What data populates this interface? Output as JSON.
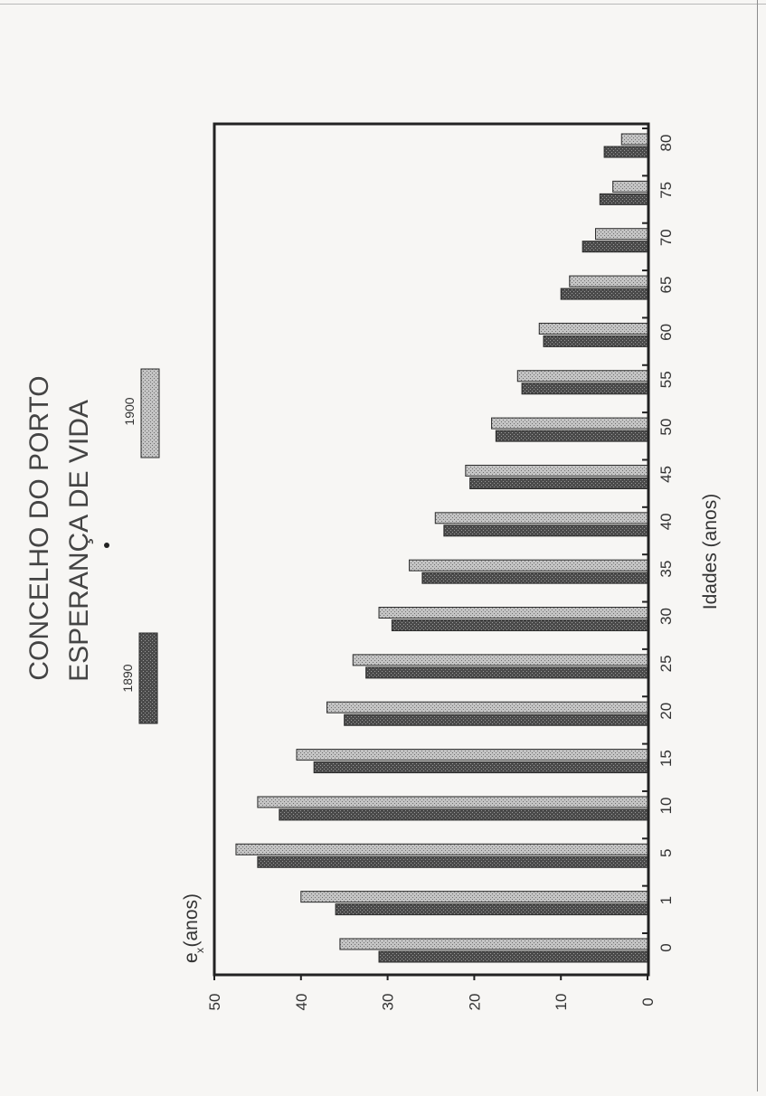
{
  "chart_data": {
    "type": "bar",
    "title": "CONCELHO DO PORTO",
    "subtitle": "ESPERANÇA DE VIDA",
    "xlabel": "Idades (anos)",
    "ylabel": "e (anos)",
    "ylabel_subscript": "x",
    "categories": [
      "0",
      "1",
      "5",
      "10",
      "15",
      "20",
      "25",
      "30",
      "35",
      "40",
      "45",
      "50",
      "55",
      "60",
      "65",
      "70",
      "75",
      "80"
    ],
    "series": [
      {
        "name": "1890",
        "color": "#5a5a5a",
        "values": [
          31,
          36,
          45,
          42.5,
          38.5,
          35,
          32.5,
          29.5,
          26,
          23.5,
          20.5,
          17.5,
          14.5,
          12,
          10,
          7.5,
          5.5,
          5
        ]
      },
      {
        "name": "1900",
        "color": "#bdbdbd",
        "values": [
          35.5,
          40,
          47.5,
          45,
          40.5,
          37,
          34,
          31,
          27.5,
          24.5,
          21,
          18,
          15,
          12.5,
          9,
          6,
          4,
          3
        ]
      }
    ],
    "ylim": [
      0,
      50
    ],
    "yticks": [
      "0",
      "10",
      "20",
      "30",
      "40",
      "50"
    ],
    "orientation": "rotated-90-ccw",
    "legend_position": "top"
  }
}
